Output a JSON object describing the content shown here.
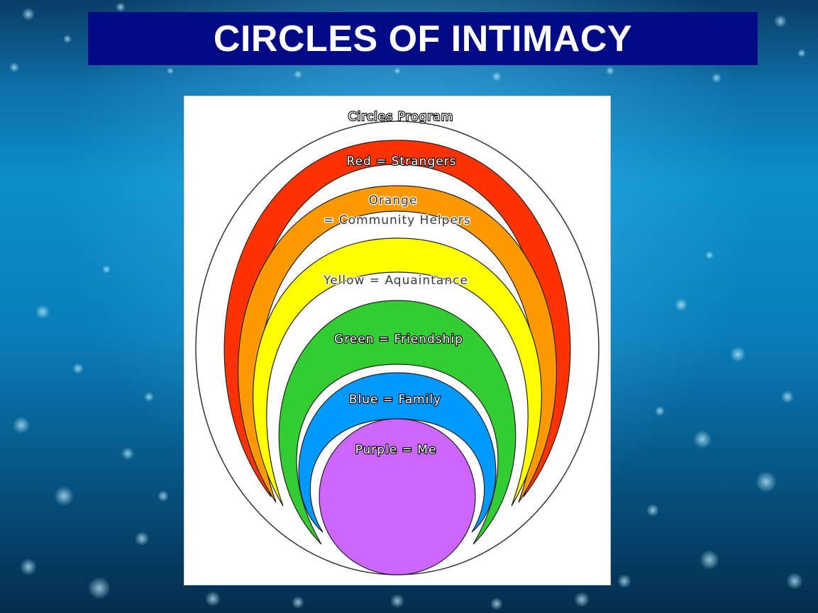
{
  "slide": {
    "title": "CIRCLES OF INTIMACY"
  },
  "diagram": {
    "heading": "Circles Program",
    "circles": [
      {
        "line1": "Red = Strangers",
        "line2": "",
        "color": "#ff3300"
      },
      {
        "line1": "Orange",
        "line2": "= Community Helpers",
        "color": "#ff9900"
      },
      {
        "line1": "Yellow = Aquaintance",
        "line2": "",
        "color": "#ffff00"
      },
      {
        "line1": "Green = Friendship",
        "line2": "",
        "color": "#33cc33"
      },
      {
        "line1": "Blue = Family",
        "line2": "",
        "color": "#0099ff"
      },
      {
        "line1": "Purple = Me",
        "line2": "",
        "color": "#cc66ff"
      }
    ]
  },
  "colors": {
    "title_bar": "#020a86",
    "background": "#0b8fc9"
  }
}
